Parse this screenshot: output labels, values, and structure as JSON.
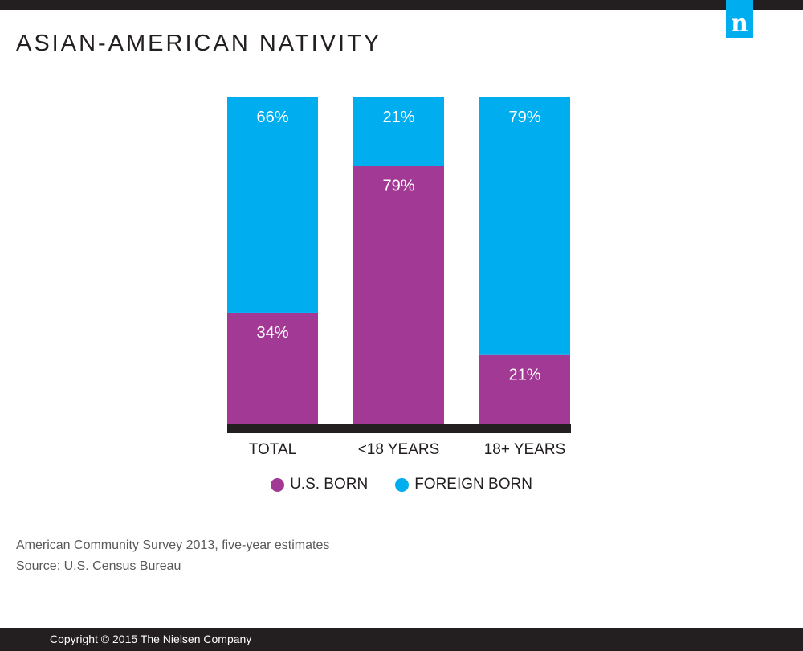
{
  "header": {
    "title": "ASIAN-AMERICAN NATIVITY",
    "logo_text": "n"
  },
  "colors": {
    "us_born": "#a23a95",
    "foreign_born": "#00aeef",
    "baseline": "#231f20"
  },
  "chart_data": {
    "type": "bar",
    "stacked": true,
    "title": "ASIAN-AMERICAN NATIVITY",
    "categories": [
      "TOTAL",
      "<18 YEARS",
      "18+ YEARS"
    ],
    "series": [
      {
        "name": "U.S. BORN",
        "values": [
          34,
          79,
          21
        ],
        "labels": [
          "34%",
          "79%",
          "21%"
        ]
      },
      {
        "name": "FOREIGN BORN",
        "values": [
          66,
          21,
          79
        ],
        "labels": [
          "66%",
          "21%",
          "79%"
        ]
      }
    ],
    "ylim": [
      0,
      100
    ],
    "xlabel": "",
    "ylabel": "",
    "grid": false,
    "legend": "bottom"
  },
  "legend": {
    "us_born": "U.S. BORN",
    "foreign_born": "FOREIGN BORN"
  },
  "notes": {
    "survey": "American Community Survey 2013, five-year estimates",
    "source": "Source: U.S. Census Bureau"
  },
  "footer": {
    "copyright": "Copyright © 2015 The Nielsen Company"
  }
}
